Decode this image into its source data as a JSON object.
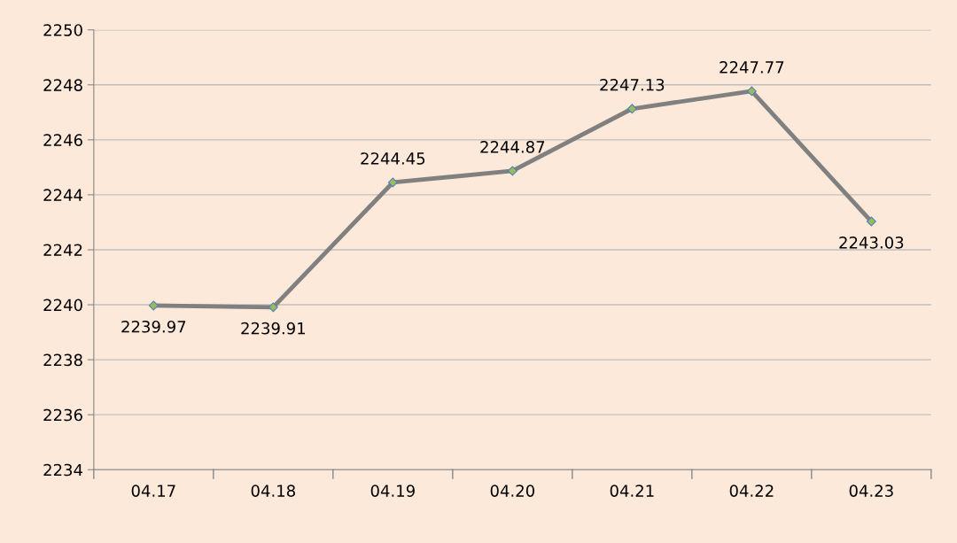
{
  "chart_data": {
    "type": "line",
    "categories": [
      "04.17",
      "04.18",
      "04.19",
      "04.20",
      "04.21",
      "04.22",
      "04.23"
    ],
    "series": [
      {
        "color": "#808080",
        "values": [
          2239.97,
          2239.91,
          2244.45,
          2244.87,
          2247.13,
          2247.77,
          2243.03
        ]
      }
    ],
    "ylim": [
      2234,
      2250
    ],
    "yticks": [
      2234,
      2236,
      2238,
      2240,
      2242,
      2244,
      2246,
      2248,
      2250
    ],
    "grid": "y",
    "marker": "diamond",
    "line_style": "solid",
    "data_labels": true,
    "legend": false
  }
}
